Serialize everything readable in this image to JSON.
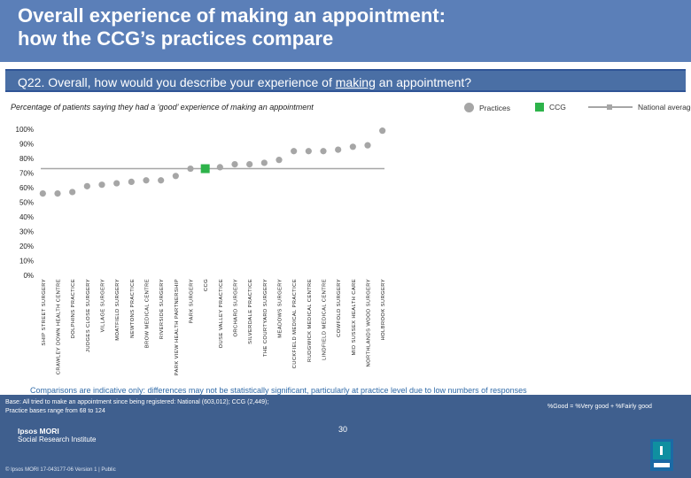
{
  "header": {
    "title_line1": "Overall experience of making an appointment:",
    "title_line2": "how the CCG’s practices compare"
  },
  "question": {
    "prefix": "Q22. Overall, how would you describe your experience of ",
    "emphasis": "making",
    "suffix": " an appointment?"
  },
  "subtitle": "Percentage of patients saying they had  a ‘good’ experience of making an appointment",
  "legend": {
    "practices": "Practices",
    "ccg": "CCG",
    "national": "National average"
  },
  "colors": {
    "practice_marker": "#a6a6a6",
    "ccg_marker": "#2db34a",
    "national_line": "#a6a6a6",
    "header_bg": "#5b7fb8",
    "question_bg": "#4a6fa5",
    "footer_bg": "#3f5f8e",
    "note_text": "#2f6aa8"
  },
  "chart_data": {
    "type": "scatter",
    "title": "Percentage of patients saying they had  a ‘good’ experience of making an appointment",
    "xlabel": "",
    "ylabel": "",
    "ylim": [
      0,
      100
    ],
    "yticks": [
      "0%",
      "10%",
      "20%",
      "30%",
      "40%",
      "50%",
      "60%",
      "70%",
      "80%",
      "90%",
      "100%"
    ],
    "categories": [
      "SHIP STREET SURGERY",
      "CRAWLEY DOWN HEALTH CENTRE",
      "DOLPHINS PRACTICE",
      "JUDGES CLOSE SURGERY",
      "VILLAGE SURGERY",
      "MOATFIELD SURGERY",
      "NEWTONS PRACTICE",
      "BROW MEDICAL CENTRE",
      "RIVERSIDE SURGERY",
      "PARK VIEW HEALTH PARTNERSHIP",
      "PARK SURGERY",
      "CCG",
      "OUSE VALLEY PRACTICE",
      "ORCHARD SURGERY",
      "SILVERDALE PRACTICE",
      "THE COURTYARD SURGERY",
      "MEADOWS SURGERY",
      "CUCKFIELD MEDICAL PRACTICE",
      "RUDGWICK MEDICAL CENTRE",
      "LINDFIELD MEDICAL CENTRE",
      "COWFOLD SURGERY",
      "MID SUSSEX HEALTH CARE",
      "NORTHLANDS WOOD SURGERY",
      "HOLBROOK SURGERY"
    ],
    "series": [
      {
        "name": "Practices",
        "values": [
          56,
          56,
          57,
          61,
          62,
          63,
          64,
          65,
          65,
          68,
          73,
          null,
          74,
          76,
          76,
          77,
          79,
          85,
          85,
          85,
          86,
          88,
          89,
          99
        ]
      },
      {
        "name": "CCG",
        "values": [
          null,
          null,
          null,
          null,
          null,
          null,
          null,
          null,
          null,
          null,
          null,
          73,
          null,
          null,
          null,
          null,
          null,
          null,
          null,
          null,
          null,
          null,
          null,
          null
        ]
      },
      {
        "name": "National average",
        "values": [
          73,
          73,
          73,
          73,
          73,
          73,
          73,
          73,
          73,
          73,
          73,
          73,
          73,
          73,
          73,
          73,
          73,
          73,
          73,
          73,
          73,
          73,
          73,
          73
        ]
      }
    ]
  },
  "note": "Comparisons are indicative only: differences may not be statistically significant, particularly at practice level due to low numbers of responses",
  "footer": {
    "base_line1": "Base: All tried to make an appointment since being registered: National (603,012); CCG (2,449);",
    "base_line2": "Practice bases range from 68 to 124",
    "key": "%Good = %Very good + %Fairly good",
    "brand_line1": "Ipsos MORI",
    "brand_line2": "Social Research Institute",
    "credit": "© Ipsos MORI      17-043177-06 Version 1 | Public",
    "page_number": "30"
  }
}
